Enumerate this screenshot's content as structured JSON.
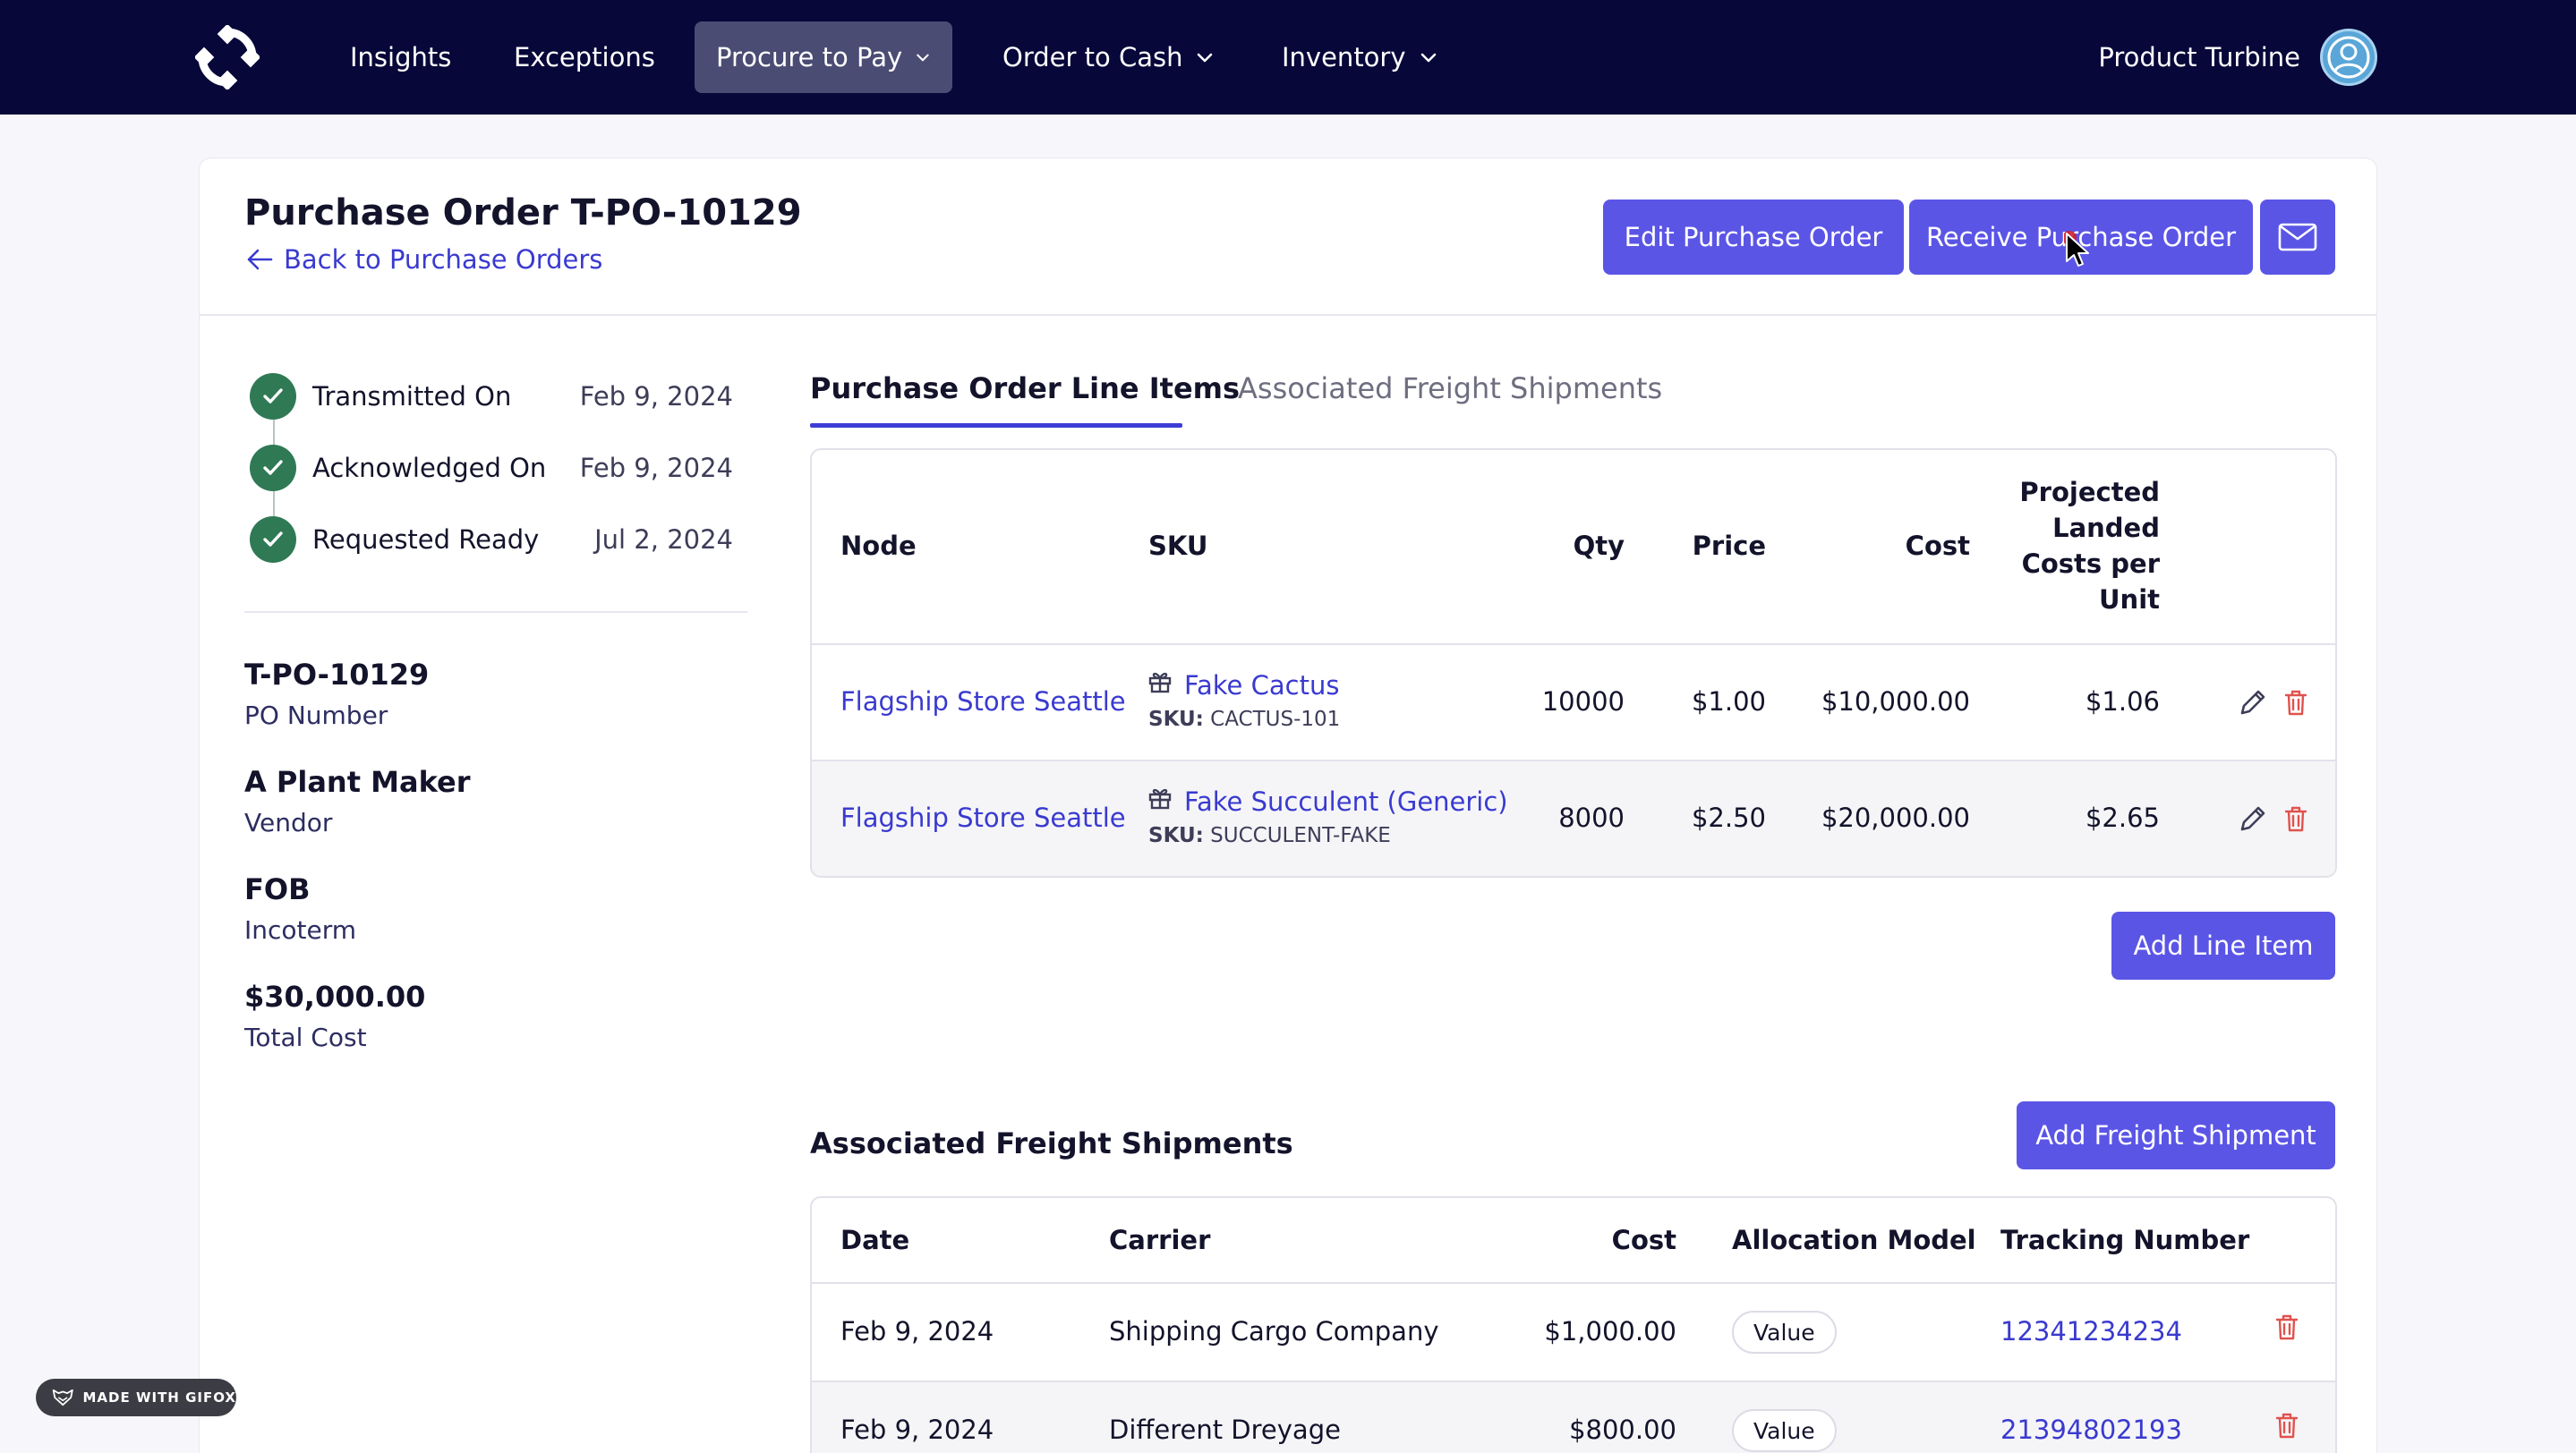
{
  "nav": {
    "items": [
      {
        "label": "Insights"
      },
      {
        "label": "Exceptions"
      },
      {
        "label": "Procure to Pay"
      },
      {
        "label": "Order to Cash"
      },
      {
        "label": "Inventory"
      }
    ],
    "user_name": "Product Turbine"
  },
  "header": {
    "title": "Purchase Order T-PO-10129",
    "back_label": "Back to Purchase Orders",
    "edit_label": "Edit Purchase Order",
    "receive_label": "Receive Purchase Order"
  },
  "timeline": [
    {
      "label": "Transmitted On",
      "date": "Feb 9, 2024"
    },
    {
      "label": "Acknowledged On",
      "date": "Feb 9, 2024"
    },
    {
      "label": "Requested Ready",
      "date": "Jul 2, 2024"
    }
  ],
  "info": [
    {
      "value": "T-PO-10129",
      "label": "PO Number"
    },
    {
      "value": "A Plant Maker",
      "label": "Vendor"
    },
    {
      "value": "FOB",
      "label": "Incoterm"
    },
    {
      "value": "$30,000.00",
      "label": "Total Cost"
    }
  ],
  "tabs": [
    {
      "label": "Purchase Order Line Items"
    },
    {
      "label": "Associated Freight Shipments"
    }
  ],
  "line_items": {
    "headers": {
      "node": "Node",
      "sku": "SKU",
      "qty": "Qty",
      "price": "Price",
      "cost": "Cost",
      "landed_1": "Projected",
      "landed_2": "Landed",
      "landed_3": "Costs per",
      "landed_4": "Unit"
    },
    "rows": [
      {
        "node": "Flagship Store Seattle",
        "name": "Fake Cactus",
        "sku_prefix": "SKU:",
        "sku": "CACTUS-101",
        "qty": "10000",
        "price": "$1.00",
        "cost": "$10,000.00",
        "landed": "$1.06"
      },
      {
        "node": "Flagship Store Seattle",
        "name": "Fake Succulent (Generic)",
        "sku_prefix": "SKU:",
        "sku": "SUCCULENT-FAKE",
        "qty": "8000",
        "price": "$2.50",
        "cost": "$20,000.00",
        "landed": "$2.65"
      }
    ],
    "add_label": "Add Line Item"
  },
  "freight": {
    "title": "Associated Freight Shipments",
    "add_label": "Add Freight Shipment",
    "headers": {
      "date": "Date",
      "carrier": "Carrier",
      "cost": "Cost",
      "allocation": "Allocation Model",
      "tracking": "Tracking Number"
    },
    "rows": [
      {
        "date": "Feb 9, 2024",
        "carrier": "Shipping Cargo Company",
        "cost": "$1,000.00",
        "allocation": "Value",
        "tracking": "12341234234"
      },
      {
        "date": "Feb 9, 2024",
        "carrier": "Different Dreyage",
        "cost": "$800.00",
        "allocation": "Value",
        "tracking": "21394802193"
      }
    ]
  },
  "badge": {
    "label": "MADE WITH GIFOX"
  },
  "colors": {
    "navbar": "#07073a",
    "primary": "#5b55e6",
    "link": "#3a3ad0",
    "success": "#2f7a55",
    "danger": "#e0524d"
  }
}
